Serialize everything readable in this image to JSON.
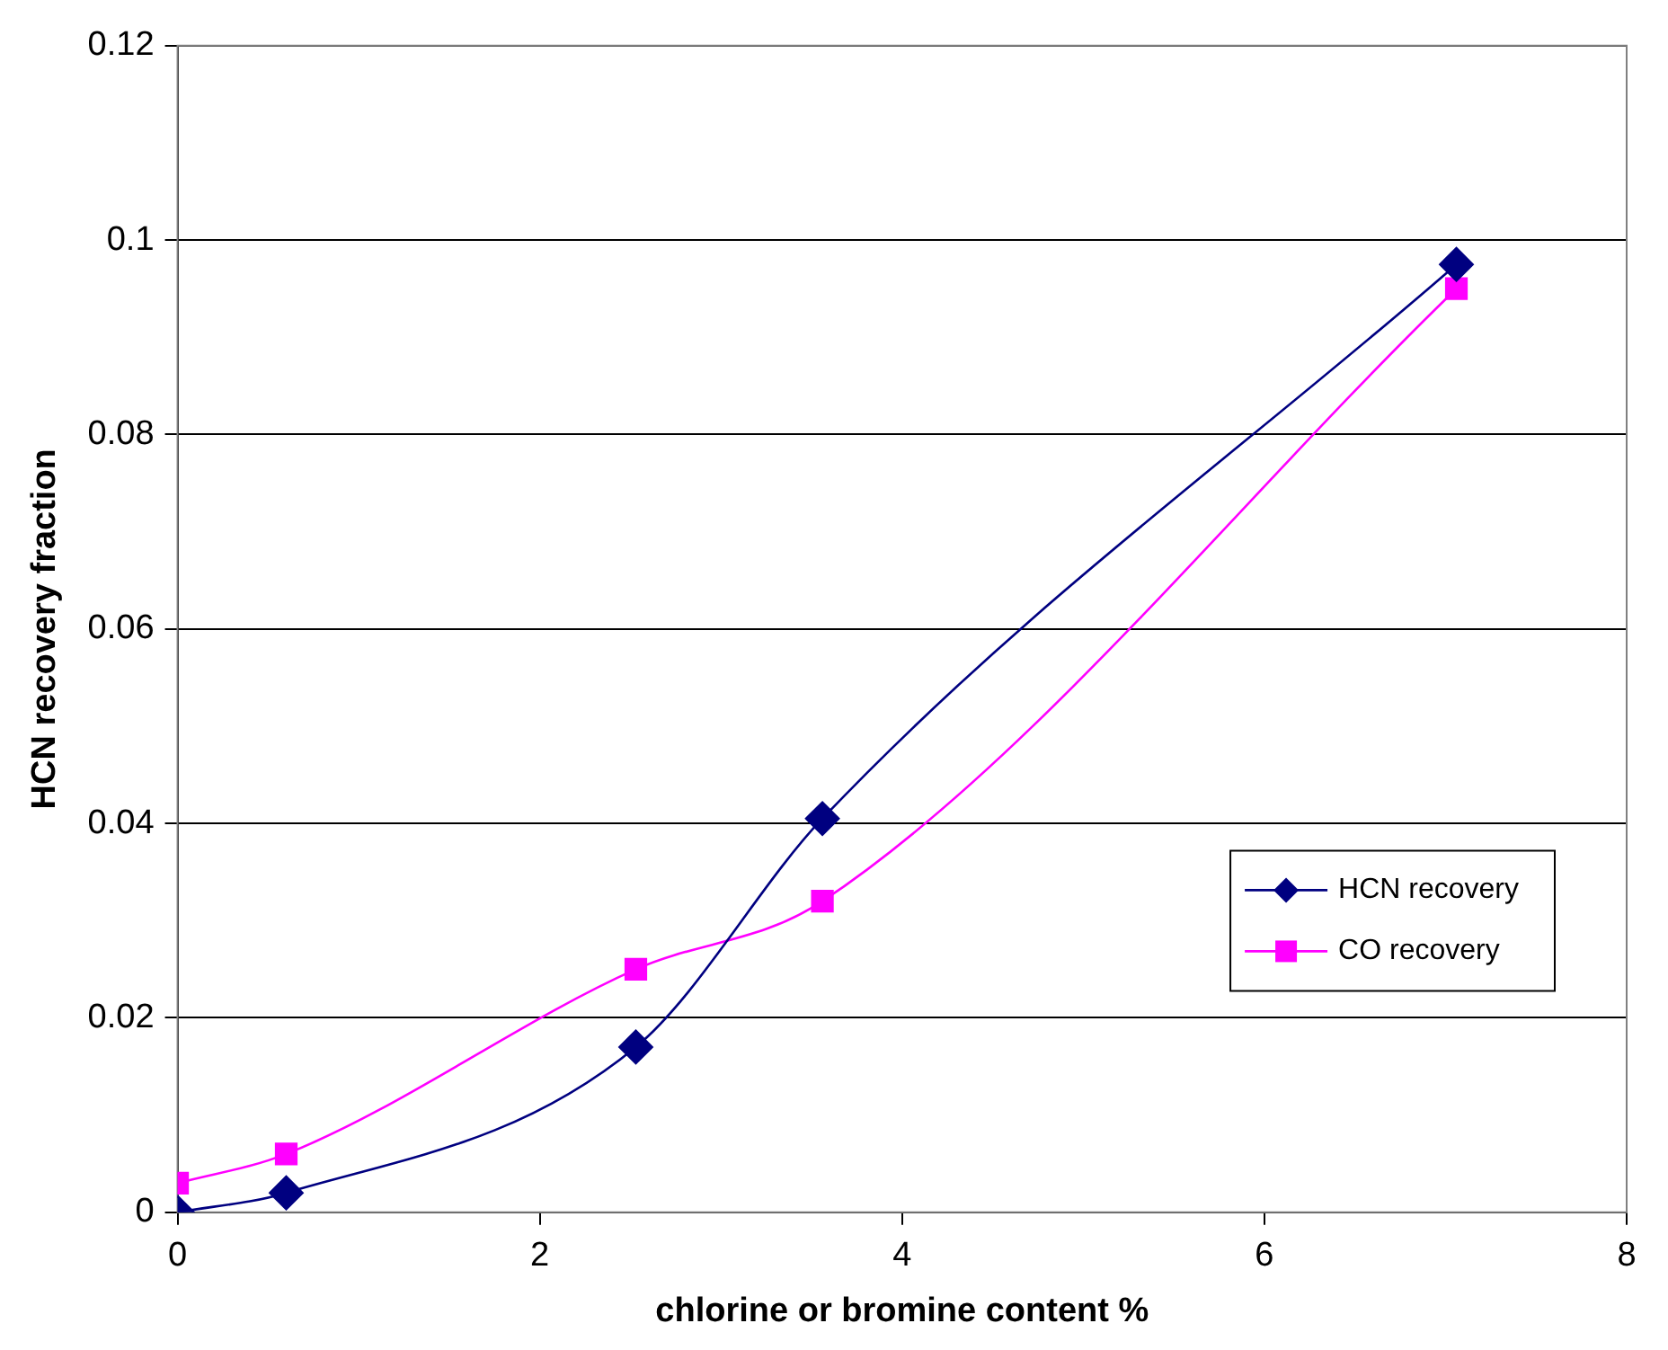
{
  "chart_data": {
    "type": "line",
    "xlabel": "chlorine or bromine content %",
    "ylabel": "HCN recovery fraction",
    "xlim": [
      0,
      8
    ],
    "xticks": [
      0,
      2,
      4,
      6,
      8
    ],
    "ylim": [
      0,
      0.12
    ],
    "yticks": [
      0,
      0.02,
      0.04,
      0.06,
      0.08,
      0.1,
      0.12
    ],
    "grid": "y",
    "legend": "right",
    "series": [
      {
        "name": "HCN recovery",
        "color": "#000080",
        "marker": "diamond",
        "x": [
          0,
          0.6,
          2.53,
          3.56,
          7.06
        ],
        "values": [
          0,
          0.002,
          0.017,
          0.0405,
          0.0975
        ]
      },
      {
        "name": "CO recovery",
        "color": "#ff00ff",
        "marker": "square",
        "x": [
          0,
          0.6,
          2.53,
          3.56,
          7.06
        ],
        "values": [
          0.003,
          0.006,
          0.025,
          0.032,
          0.095
        ]
      }
    ]
  }
}
